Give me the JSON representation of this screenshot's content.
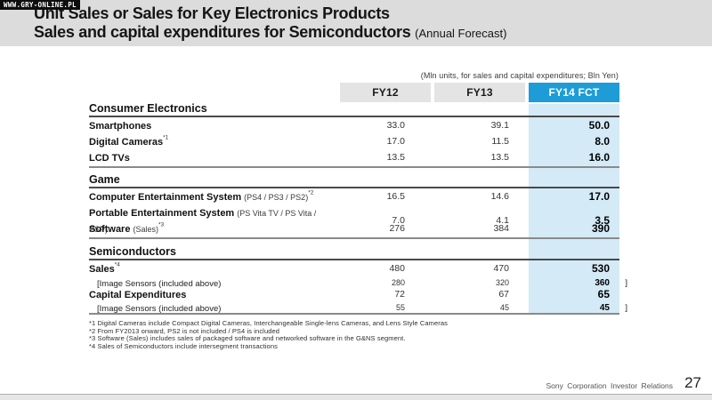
{
  "watermark": "WWW.GRY-ONLINE.PL",
  "header": {
    "title_line1": "Unit Sales or Sales for Key Electronics Products",
    "title_line2": "Sales and capital expenditures for Semiconductors",
    "title_line2_note": "(Annual Forecast)"
  },
  "table": {
    "units_note": "(Mln units, for sales and capital expenditures;  Bln Yen)",
    "col_headers": [
      "FY12",
      "FY13",
      "FY14 FCT"
    ],
    "sections": [
      {
        "title": "Consumer Electronics",
        "rows": [
          {
            "label": "Smartphones",
            "fy12": "33.0",
            "fy13": "39.1",
            "fy14": "50.0"
          },
          {
            "label": "Digital Cameras",
            "sup": "*1",
            "fy12": "17.0",
            "fy13": "11.5",
            "fy14": "8.0"
          },
          {
            "label": "LCD TVs",
            "fy12": "13.5",
            "fy13": "13.5",
            "fy14": "16.0"
          }
        ]
      },
      {
        "title": "Game",
        "rows": [
          {
            "label": "Computer Entertainment System",
            "note": "(PS4 / PS3 / PS2)",
            "sup": "*2",
            "fy12": "16.5",
            "fy13": "14.6",
            "fy14": "17.0"
          },
          {
            "label": "Portable Entertainment System",
            "note": "(PS Vita TV / PS Vita / PSP)",
            "fy12": "7.0",
            "fy13": "4.1",
            "fy14": "3.5"
          },
          {
            "label": "Software",
            "note": "(Sales)",
            "sup": "*3",
            "fy12": "276",
            "fy13": "384",
            "fy14": "390"
          }
        ]
      },
      {
        "title": "Semiconductors",
        "rows": [
          {
            "label": "Sales",
            "sup": "*4",
            "fy12": "480",
            "fy13": "470",
            "fy14": "530"
          },
          {
            "label": "[Image Sensors  (included above)",
            "fy12": "280",
            "fy13": "320",
            "fy14": "360",
            "bracket": "]"
          },
          {
            "label": "Capital Expenditures",
            "fy12": "72",
            "fy13": "67",
            "fy14": "65"
          },
          {
            "label": "[Image Sensors  (included above)",
            "fy12": "55",
            "fy13": "45",
            "fy14": "45",
            "bracket": "]"
          }
        ]
      }
    ]
  },
  "footnotes": [
    "*1 Digital Cameras include Compact Digital Cameras, Interchangeable Single-lens Cameras, and Lens Style Cameras",
    "*2 From FY2013 onward, PS2 is not included / PS4 is included",
    "*3 Software (Sales) includes sales of packaged software and networked software in the G&NS segment.",
    "*4 Sales of Semiconductors include intersegment transactions"
  ],
  "footer": {
    "company": "Sony Corporation Investor Relations",
    "page": "27"
  },
  "colors": {
    "accent_blue": "#1e9cd7",
    "fct_column_blue": "#d4eaf6",
    "header_gray": "#e4e4e4",
    "title_band_gray": "#dcdcdc"
  }
}
